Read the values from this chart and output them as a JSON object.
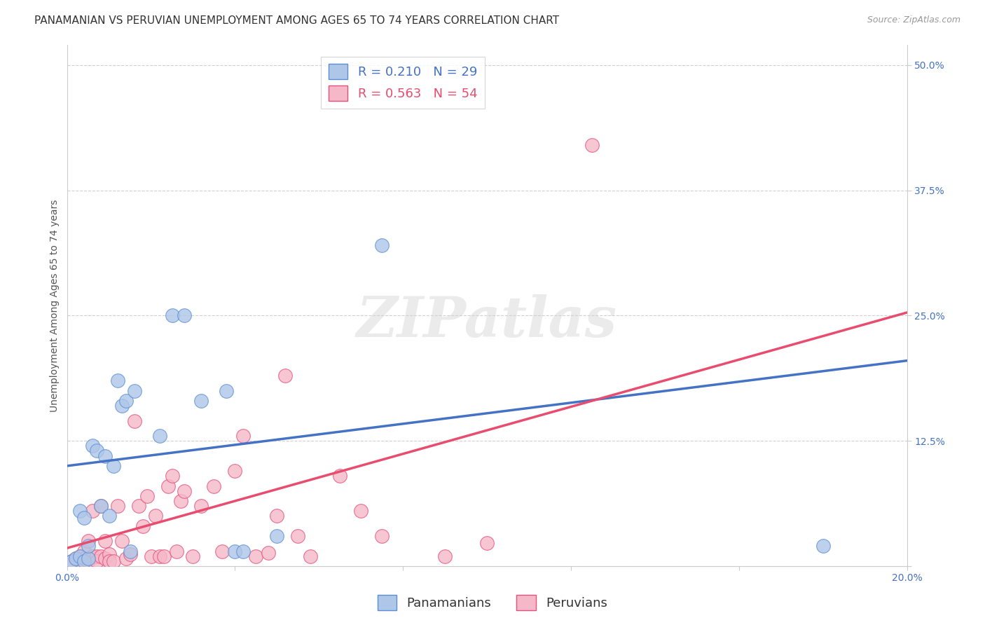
{
  "title": "PANAMANIAN VS PERUVIAN UNEMPLOYMENT AMONG AGES 65 TO 74 YEARS CORRELATION CHART",
  "source": "Source: ZipAtlas.com",
  "ylabel": "Unemployment Among Ages 65 to 74 years",
  "xlim": [
    0.0,
    0.2
  ],
  "ylim": [
    0.0,
    0.52
  ],
  "xtick_positions": [
    0.0,
    0.04,
    0.08,
    0.12,
    0.16,
    0.2
  ],
  "xticklabels": [
    "0.0%",
    "",
    "",
    "",
    "",
    "20.0%"
  ],
  "ytick_positions": [
    0.0,
    0.125,
    0.25,
    0.375,
    0.5
  ],
  "yticklabels_right": [
    "",
    "12.5%",
    "25.0%",
    "37.5%",
    "50.0%"
  ],
  "blue_R": 0.21,
  "blue_N": 29,
  "pink_R": 0.563,
  "pink_N": 54,
  "blue_color": "#aec6e8",
  "pink_color": "#f5b8c8",
  "blue_edge_color": "#5b8fd4",
  "pink_edge_color": "#e8507a",
  "blue_line_color": "#4472c4",
  "pink_line_color": "#e84c6e",
  "blue_label": "Panamanians",
  "pink_label": "Peruvians",
  "blue_line_x": [
    0.0,
    0.2
  ],
  "blue_line_y": [
    0.1,
    0.205
  ],
  "pink_line_x": [
    0.0,
    0.2
  ],
  "pink_line_y": [
    0.018,
    0.253
  ],
  "blue_scatter_x": [
    0.001,
    0.002,
    0.003,
    0.003,
    0.004,
    0.004,
    0.005,
    0.005,
    0.006,
    0.007,
    0.008,
    0.009,
    0.01,
    0.011,
    0.012,
    0.013,
    0.014,
    0.015,
    0.016,
    0.022,
    0.025,
    0.028,
    0.032,
    0.038,
    0.04,
    0.042,
    0.05,
    0.075,
    0.18
  ],
  "blue_scatter_y": [
    0.005,
    0.008,
    0.01,
    0.055,
    0.005,
    0.048,
    0.008,
    0.02,
    0.12,
    0.115,
    0.06,
    0.11,
    0.05,
    0.1,
    0.185,
    0.16,
    0.165,
    0.015,
    0.175,
    0.13,
    0.25,
    0.25,
    0.165,
    0.175,
    0.015,
    0.015,
    0.03,
    0.32,
    0.02
  ],
  "pink_scatter_x": [
    0.001,
    0.002,
    0.003,
    0.003,
    0.004,
    0.004,
    0.005,
    0.005,
    0.006,
    0.006,
    0.007,
    0.007,
    0.008,
    0.008,
    0.009,
    0.009,
    0.01,
    0.01,
    0.011,
    0.012,
    0.013,
    0.014,
    0.015,
    0.016,
    0.017,
    0.018,
    0.019,
    0.02,
    0.021,
    0.022,
    0.023,
    0.024,
    0.025,
    0.026,
    0.027,
    0.028,
    0.03,
    0.032,
    0.035,
    0.037,
    0.04,
    0.042,
    0.045,
    0.048,
    0.05,
    0.052,
    0.055,
    0.058,
    0.065,
    0.07,
    0.075,
    0.09,
    0.1,
    0.125
  ],
  "pink_scatter_y": [
    0.005,
    0.008,
    0.01,
    0.005,
    0.015,
    0.008,
    0.025,
    0.005,
    0.01,
    0.055,
    0.01,
    0.005,
    0.01,
    0.06,
    0.008,
    0.025,
    0.012,
    0.005,
    0.005,
    0.06,
    0.025,
    0.008,
    0.012,
    0.145,
    0.06,
    0.04,
    0.07,
    0.01,
    0.05,
    0.01,
    0.01,
    0.08,
    0.09,
    0.015,
    0.065,
    0.075,
    0.01,
    0.06,
    0.08,
    0.015,
    0.095,
    0.13,
    0.01,
    0.013,
    0.05,
    0.19,
    0.03,
    0.01,
    0.09,
    0.055,
    0.03,
    0.01,
    0.023,
    0.42
  ],
  "watermark_text": "ZIPatlas",
  "background_color": "#ffffff",
  "title_fontsize": 11,
  "axis_label_fontsize": 10,
  "tick_fontsize": 10,
  "legend_fontsize": 13,
  "right_ytick_color": "#4472c4",
  "grid_color": "#d0d0d0",
  "spine_color": "#cccccc"
}
